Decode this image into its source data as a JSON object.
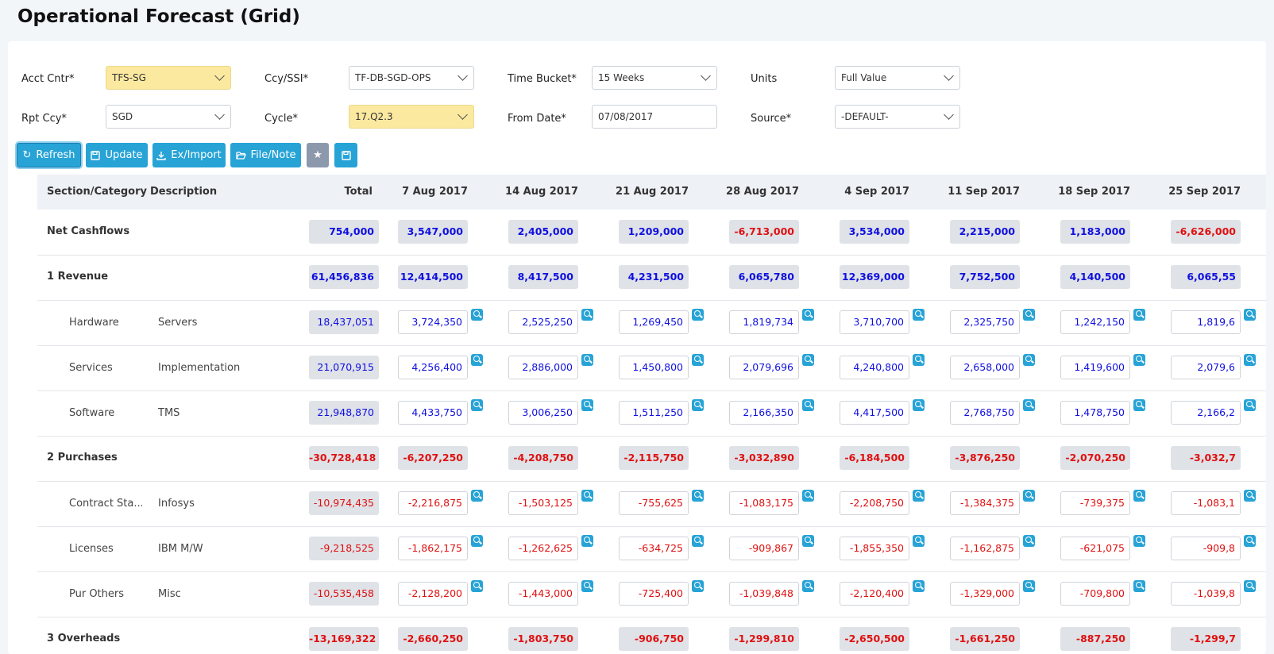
{
  "page": {
    "title": "Operational Forecast (Grid)"
  },
  "filters": {
    "acct_cntr": {
      "label": "Acct Cntr*",
      "value": "TFS-SG"
    },
    "ccy_ssi": {
      "label": "Ccy/SSI*",
      "value": "TF-DB-SGD-OPS"
    },
    "time_bucket": {
      "label": "Time Bucket*",
      "value": "15 Weeks"
    },
    "units": {
      "label": "Units",
      "value": "Full Value"
    },
    "rpt_ccy": {
      "label": "Rpt Ccy*",
      "value": "SGD"
    },
    "cycle": {
      "label": "Cycle*",
      "value": "17.Q2.3"
    },
    "from_date": {
      "label": "From Date*",
      "value": "07/08/2017"
    },
    "source": {
      "label": "Source*",
      "value": "-DEFAULT-"
    }
  },
  "toolbar": {
    "refresh": "Refresh",
    "update": "Update",
    "eximport": "Ex/Import",
    "filenote": "File/Note"
  },
  "grid": {
    "headers": {
      "section": "Section/Category",
      "description": "Description",
      "total": "Total",
      "weeks": [
        "7 Aug 2017",
        "14 Aug 2017",
        "21 Aug 2017",
        "28 Aug 2017",
        "4 Sep 2017",
        "11 Sep 2017",
        "18 Sep 2017",
        "25 Sep 2017"
      ]
    },
    "rows": [
      {
        "type": "section",
        "label": "Net Cashflows",
        "total": "754,000",
        "values": [
          "3,547,000",
          "2,405,000",
          "1,209,000",
          "-6,713,000",
          "3,534,000",
          "2,215,000",
          "1,183,000",
          "-6,626,000"
        ]
      },
      {
        "type": "section",
        "label": "1 Revenue",
        "total": "61,456,836",
        "values": [
          "12,414,500",
          "8,417,500",
          "4,231,500",
          "6,065,780",
          "12,369,000",
          "7,752,500",
          "4,140,500",
          "6,065,55"
        ]
      },
      {
        "type": "item",
        "category": "Hardware",
        "description": "Servers",
        "total": "18,437,051",
        "values": [
          "3,724,350",
          "2,525,250",
          "1,269,450",
          "1,819,734",
          "3,710,700",
          "2,325,750",
          "1,242,150",
          "1,819,6"
        ]
      },
      {
        "type": "item",
        "category": "Services",
        "description": "Implementation",
        "total": "21,070,915",
        "values": [
          "4,256,400",
          "2,886,000",
          "1,450,800",
          "2,079,696",
          "4,240,800",
          "2,658,000",
          "1,419,600",
          "2,079,6"
        ]
      },
      {
        "type": "item",
        "category": "Software",
        "description": "TMS",
        "total": "21,948,870",
        "values": [
          "4,433,750",
          "3,006,250",
          "1,511,250",
          "2,166,350",
          "4,417,500",
          "2,768,750",
          "1,478,750",
          "2,166,2"
        ]
      },
      {
        "type": "section",
        "label": "2 Purchases",
        "total": "-30,728,418",
        "values": [
          "-6,207,250",
          "-4,208,750",
          "-2,115,750",
          "-3,032,890",
          "-6,184,500",
          "-3,876,250",
          "-2,070,250",
          "-3,032,7"
        ]
      },
      {
        "type": "item",
        "category": "Contract Sta...",
        "description": "Infosys",
        "total": "-10,974,435",
        "values": [
          "-2,216,875",
          "-1,503,125",
          "-755,625",
          "-1,083,175",
          "-2,208,750",
          "-1,384,375",
          "-739,375",
          "-1,083,1"
        ]
      },
      {
        "type": "item",
        "category": "Licenses",
        "description": "IBM M/W",
        "total": "-9,218,525",
        "values": [
          "-1,862,175",
          "-1,262,625",
          "-634,725",
          "-909,867",
          "-1,855,350",
          "-1,162,875",
          "-621,075",
          "-909,8"
        ]
      },
      {
        "type": "item",
        "category": "Pur Others",
        "description": "Misc",
        "total": "-10,535,458",
        "values": [
          "-2,128,200",
          "-1,443,000",
          "-725,400",
          "-1,039,848",
          "-2,120,400",
          "-1,329,000",
          "-709,800",
          "-1,039,8"
        ]
      },
      {
        "type": "section",
        "label": "3 Overheads",
        "total": "-13,169,322",
        "values": [
          "-2,660,250",
          "-1,803,750",
          "-906,750",
          "-1,299,810",
          "-2,650,500",
          "-1,661,250",
          "-887,250",
          "-1,299,7"
        ]
      }
    ]
  }
}
